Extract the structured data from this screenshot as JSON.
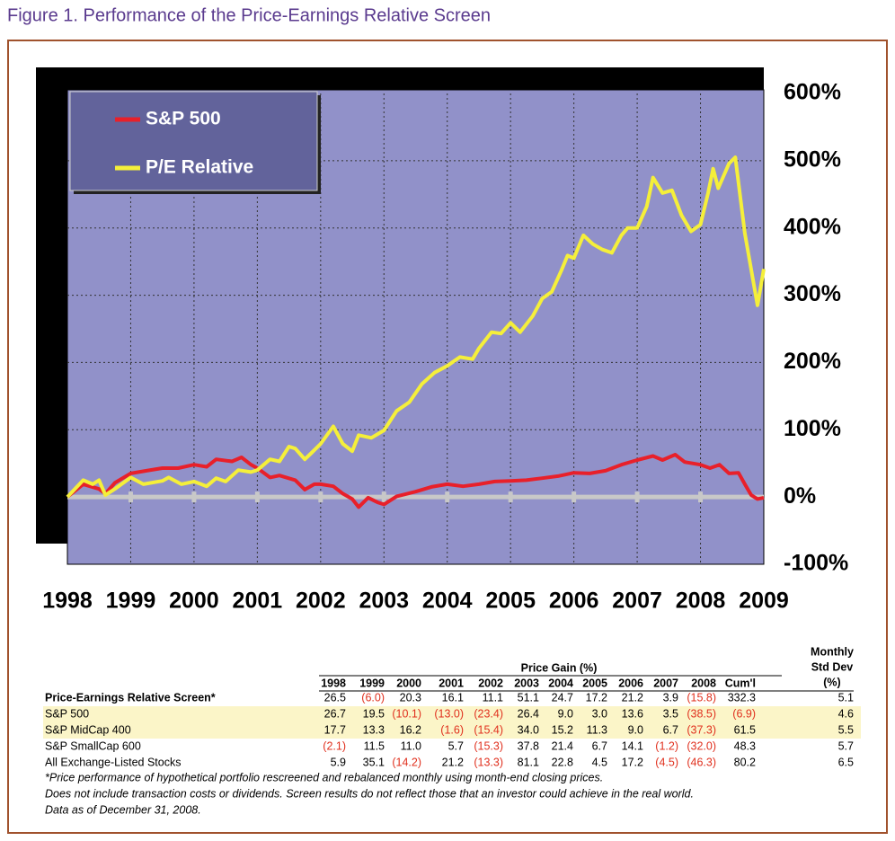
{
  "title": "Figure 1. Performance of the Price-Earnings Relative Screen",
  "chart_data": {
    "type": "line",
    "xlim": [
      1998,
      2009
    ],
    "xticks": [
      1998,
      1999,
      2000,
      2001,
      2002,
      2003,
      2004,
      2005,
      2006,
      2007,
      2008,
      2009
    ],
    "ylim": [
      -100,
      600
    ],
    "yticks": [
      {
        "value": -100,
        "label": "-100%"
      },
      {
        "value": 0,
        "label": "0%"
      },
      {
        "value": 100,
        "label": "100%"
      },
      {
        "value": 200,
        "label": "200%"
      },
      {
        "value": 300,
        "label": "300%"
      },
      {
        "value": 400,
        "label": "400%"
      },
      {
        "value": 500,
        "label": "500%"
      },
      {
        "value": 600,
        "label": "600%"
      }
    ],
    "grid": true,
    "legend": "upper left",
    "series": [
      {
        "name": "S&P 500",
        "color": "#e8202a",
        "x": [
          1998.0,
          1998.25,
          1998.5,
          1998.6,
          1998.75,
          1999.0,
          1999.25,
          1999.5,
          1999.75,
          2000.0,
          2000.2,
          2000.35,
          2000.6,
          2000.75,
          2000.9,
          2001.0,
          2001.2,
          2001.35,
          2001.6,
          2001.75,
          2001.9,
          2002.0,
          2002.2,
          2002.35,
          2002.5,
          2002.6,
          2002.75,
          2002.9,
          2003.0,
          2003.2,
          2003.5,
          2003.75,
          2004.0,
          2004.25,
          2004.5,
          2004.75,
          2005.0,
          2005.25,
          2005.5,
          2005.75,
          2006.0,
          2006.25,
          2006.5,
          2006.75,
          2007.0,
          2007.25,
          2007.4,
          2007.6,
          2007.75,
          2008.0,
          2008.15,
          2008.3,
          2008.45,
          2008.6,
          2008.7,
          2008.8,
          2008.9,
          2009.0
        ],
        "values": [
          0,
          19,
          12,
          5,
          21,
          35,
          39,
          43,
          43,
          48,
          45,
          56,
          53,
          59,
          48,
          43,
          29,
          32,
          25,
          11,
          19,
          19,
          16,
          5,
          -3,
          -15,
          -1,
          -8,
          -11,
          1,
          8,
          15,
          19,
          16,
          19,
          23,
          24,
          25,
          28,
          31,
          36,
          35,
          39,
          48,
          55,
          61,
          55,
          63,
          52,
          48,
          43,
          48,
          35,
          36,
          19,
          3,
          -3,
          -1
        ]
      },
      {
        "name": "P/E Relative",
        "color": "#f5ef3a",
        "x": [
          1998.0,
          1998.25,
          1998.4,
          1998.5,
          1998.6,
          1998.75,
          1999.0,
          1999.2,
          1999.5,
          1999.6,
          1999.8,
          2000.0,
          2000.2,
          2000.35,
          2000.5,
          2000.7,
          2000.9,
          2001.0,
          2001.2,
          2001.35,
          2001.5,
          2001.6,
          2001.75,
          2001.85,
          2002.0,
          2002.2,
          2002.35,
          2002.5,
          2002.6,
          2002.8,
          2003.0,
          2003.2,
          2003.4,
          2003.6,
          2003.8,
          2004.0,
          2004.2,
          2004.4,
          2004.5,
          2004.7,
          2004.85,
          2005.0,
          2005.15,
          2005.35,
          2005.5,
          2005.65,
          2005.8,
          2005.9,
          2006.0,
          2006.15,
          2006.3,
          2006.45,
          2006.6,
          2006.75,
          2006.85,
          2007.0,
          2007.15,
          2007.25,
          2007.4,
          2007.55,
          2007.7,
          2007.85,
          2008.0,
          2008.12,
          2008.2,
          2008.28,
          2008.45,
          2008.55,
          2008.7,
          2008.82,
          2008.9,
          2009.0
        ],
        "values": [
          0,
          25,
          19,
          25,
          3,
          12,
          29,
          19,
          24,
          29,
          19,
          23,
          16,
          28,
          23,
          40,
          37,
          40,
          56,
          53,
          75,
          72,
          56,
          65,
          79,
          105,
          79,
          68,
          92,
          88,
          99,
          128,
          141,
          168,
          185,
          195,
          208,
          205,
          221,
          245,
          243,
          259,
          245,
          269,
          295,
          305,
          336,
          359,
          355,
          389,
          376,
          368,
          363,
          389,
          400,
          400,
          432,
          475,
          452,
          456,
          419,
          395,
          405,
          452,
          488,
          459,
          496,
          505,
          392,
          328,
          285,
          339
        ]
      }
    ]
  },
  "table": {
    "group_header": "Price Gain (%)",
    "std_header": [
      "Monthly",
      "Std Dev",
      "(%)"
    ],
    "columns": [
      "1998",
      "1999",
      "2000",
      "2001",
      "2002",
      "2003",
      "2004",
      "2005",
      "2006",
      "2007",
      "2008",
      "Cum'l"
    ],
    "rows": [
      {
        "label": "Price-Earnings Relative Screen*",
        "bold": true,
        "values": [
          "26.5",
          "(6.0)",
          "20.3",
          "16.1",
          "11.1",
          "51.1",
          "24.7",
          "17.2",
          "21.2",
          "3.9",
          "(15.8)",
          "332.3"
        ],
        "std": "5.1"
      },
      {
        "label": "S&P 500",
        "highlight": true,
        "values": [
          "26.7",
          "19.5",
          "(10.1)",
          "(13.0)",
          "(23.4)",
          "26.4",
          "9.0",
          "3.0",
          "13.6",
          "3.5",
          "(38.5)",
          "(6.9)"
        ],
        "std": "4.6"
      },
      {
        "label": "S&P MidCap 400",
        "highlight": true,
        "values": [
          "17.7",
          "13.3",
          "16.2",
          "(1.6)",
          "(15.4)",
          "34.0",
          "15.2",
          "11.3",
          "9.0",
          "6.7",
          "(37.3)",
          "61.5"
        ],
        "std": "5.5"
      },
      {
        "label": "S&P SmallCap 600",
        "values": [
          "(2.1)",
          "11.5",
          "11.0",
          "5.7",
          "(15.3)",
          "37.8",
          "21.4",
          "6.7",
          "14.1",
          "(1.2)",
          "(32.0)",
          "48.3"
        ],
        "std": "5.7"
      },
      {
        "label": "All Exchange-Listed Stocks",
        "values": [
          "5.9",
          "35.1",
          "(14.2)",
          "21.2",
          "(13.3)",
          "81.1",
          "22.8",
          "4.5",
          "17.2",
          "(4.5)",
          "(46.3)",
          "80.2"
        ],
        "std": "6.5"
      }
    ],
    "notes": [
      "*Price performance of hypothetical portfolio rescreened and rebalanced monthly using month-end closing prices.",
      " Does not include transaction costs or dividends. Screen results do not reflect those that an investor could achieve in the real world.",
      "Data as of December 31, 2008."
    ]
  }
}
